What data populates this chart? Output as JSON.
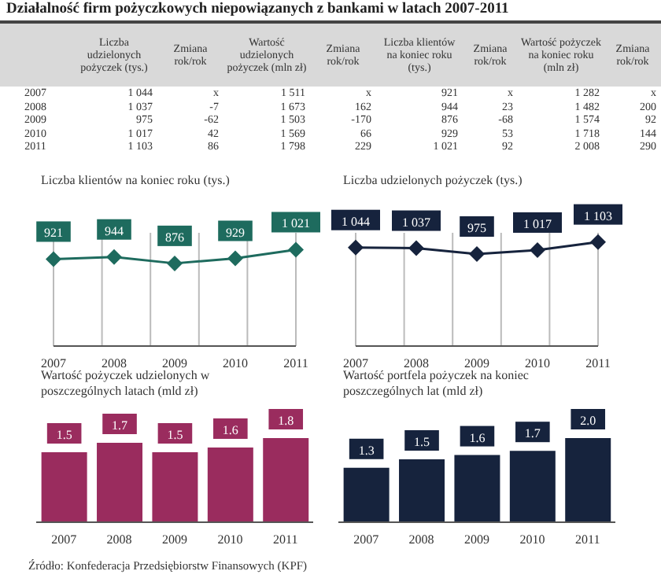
{
  "chart_data": [
    {
      "type": "other",
      "title": "Działalność firm pożyczkowych niepowiązanych z bankami w latach 2007-2011",
      "categories": [
        null,
        "Liczba udzielonych pożyczek (tys.)",
        "Zmiana rok/rok",
        "Wartość udzielonych pożyczek (mln zł)",
        "Zmiana rok/rok",
        "Liczba klientów na koniec roku (tys.)",
        "Zmiana rok/rok",
        "Wartość pożyczek na koniec roku (mln zł)",
        "Zmiana rok/rok"
      ],
      "y_categories": [
        "2007",
        "2008",
        "2009",
        "2010",
        "2011"
      ],
      "cell_labels": [
        [
          "1 044",
          "x",
          "1 511",
          "x",
          "921",
          "x",
          "1 282",
          "x"
        ],
        [
          "1 037",
          "-7",
          "1 673",
          "162",
          "944",
          "23",
          "1 482",
          "200"
        ],
        [
          "975",
          "-62",
          "1 503",
          "-170",
          "876",
          "-68",
          "1 574",
          "92"
        ],
        [
          "1 017",
          "42",
          "1 569",
          "66",
          "929",
          "53",
          "1 718",
          "144"
        ],
        [
          "1 103",
          "86",
          "1 798",
          "229",
          "1 021",
          "92",
          "2 008",
          "290"
        ]
      ]
    },
    {
      "type": "line",
      "title": "Liczba klientów na koniec roku (tys.)",
      "categories": [
        "2007",
        "2008",
        "2009",
        "2010",
        "2011"
      ],
      "values": [
        921,
        944,
        876,
        929,
        1021
      ],
      "color": "#1e6b5e",
      "data_labels": true,
      "marker": "diamond",
      "grid": "x"
    },
    {
      "type": "line",
      "title": "Liczba udzielonych pożyczek  (tys.)",
      "categories": [
        "2007",
        "2008",
        "2009",
        "2010",
        "2011"
      ],
      "values": [
        1044,
        1037,
        975,
        1017,
        1103
      ],
      "color": "#16233d",
      "data_labels": true,
      "marker": "diamond",
      "grid": "x"
    },
    {
      "type": "bar",
      "title": "Wartość pożyczek  udzielonych w poszczególnych latach (mld zł)",
      "categories": [
        "2007",
        "2008",
        "2009",
        "2010",
        "2011"
      ],
      "values": [
        1.5,
        1.7,
        1.5,
        1.6,
        1.8
      ],
      "color": "#9a2c5e",
      "data_labels": true,
      "annotations": [
        "Źródło:  Konfederacja Przedsiębiorstw Finansowych (KPF)"
      ]
    },
    {
      "type": "bar",
      "title": "Wartość portfela pożyczek na koniec poszczególnych lat (mld zł)",
      "categories": [
        "2007",
        "2008",
        "2009",
        "2010",
        "2011"
      ],
      "values": [
        1.3,
        1.5,
        1.6,
        1.7,
        2.0
      ],
      "color": "#16233d",
      "value_labels": [
        "1.3",
        "1.5",
        "1.6",
        "1.7",
        "2.0"
      ]
    }
  ]
}
